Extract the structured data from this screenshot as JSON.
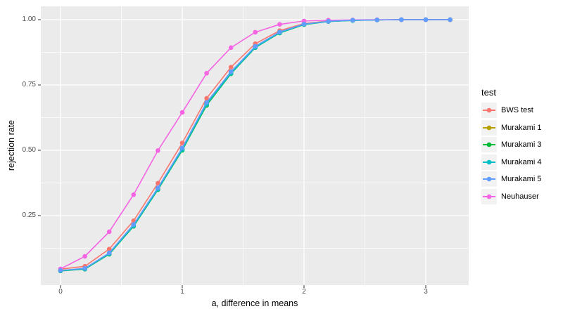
{
  "chart_data": {
    "type": "line",
    "xlabel": "a, difference in means",
    "ylabel": "rejection rate",
    "x": [
      0,
      0.2,
      0.4,
      0.6,
      0.8,
      1.0,
      1.2,
      1.4,
      1.6,
      1.8,
      2.0,
      2.2,
      2.4,
      2.6,
      2.8,
      3.0,
      3.2
    ],
    "series": [
      {
        "name": "BWS test",
        "color": "#F8766D",
        "values": [
          0.045,
          0.056,
          0.122,
          0.23,
          0.374,
          0.528,
          0.699,
          0.818,
          0.908,
          0.958,
          0.985,
          0.995,
          0.998,
          0.999,
          1.0,
          1.0,
          1.0
        ]
      },
      {
        "name": "Murakami 1",
        "color": "#B79F00",
        "values": [
          0.04,
          0.047,
          0.105,
          0.213,
          0.353,
          0.505,
          0.678,
          0.797,
          0.896,
          0.951,
          0.982,
          0.994,
          0.998,
          0.999,
          1.0,
          1.0,
          1.0
        ]
      },
      {
        "name": "Murakami 3",
        "color": "#00BA38",
        "values": [
          0.038,
          0.045,
          0.102,
          0.209,
          0.349,
          0.5,
          0.672,
          0.793,
          0.893,
          0.949,
          0.981,
          0.993,
          0.997,
          0.999,
          1.0,
          1.0,
          1.0
        ]
      },
      {
        "name": "Murakami 4",
        "color": "#00BFC4",
        "values": [
          0.039,
          0.046,
          0.104,
          0.211,
          0.351,
          0.503,
          0.676,
          0.795,
          0.894,
          0.95,
          0.982,
          0.993,
          0.997,
          0.999,
          1.0,
          1.0,
          1.0
        ]
      },
      {
        "name": "Murakami 5",
        "color": "#619CFF",
        "values": [
          0.04,
          0.048,
          0.107,
          0.216,
          0.356,
          0.509,
          0.683,
          0.801,
          0.898,
          0.953,
          0.983,
          0.994,
          0.998,
          0.999,
          1.0,
          1.0,
          1.0
        ]
      },
      {
        "name": "Neuhauser",
        "color": "#F564E3",
        "values": [
          0.046,
          0.094,
          0.188,
          0.33,
          0.499,
          0.645,
          0.795,
          0.893,
          0.952,
          0.982,
          0.995,
          0.998,
          0.999,
          1.0,
          1.0,
          1.0,
          1.0
        ]
      }
    ],
    "draw_order": [
      0,
      1,
      2,
      3,
      5,
      4
    ],
    "legend": {
      "title": "test",
      "position": "right"
    },
    "x_ticks": {
      "values": [
        0,
        1,
        2,
        3
      ],
      "labels": [
        "0",
        "1",
        "2",
        "3"
      ]
    },
    "y_ticks": {
      "values": [
        0.25,
        0.5,
        0.75,
        1.0
      ],
      "labels": [
        "0.25",
        "0.50",
        "0.75",
        "1.00"
      ]
    },
    "x_minor": [
      0.5,
      1.5,
      2.5
    ],
    "y_minor": [
      0.125,
      0.375,
      0.625,
      0.875
    ],
    "xlim": [
      -0.1618,
      3.3526
    ],
    "ylim": [
      -0.0161,
      1.0511
    ],
    "grid": true
  },
  "theme": {
    "panel_bg": "#EBEBEB",
    "grid_color": "#FFFFFF",
    "tick_color": "#333333",
    "tick_label_color": "#4D4D4D",
    "legend_key_bg": "#F2F2F2",
    "background": "#FFFFFF"
  }
}
